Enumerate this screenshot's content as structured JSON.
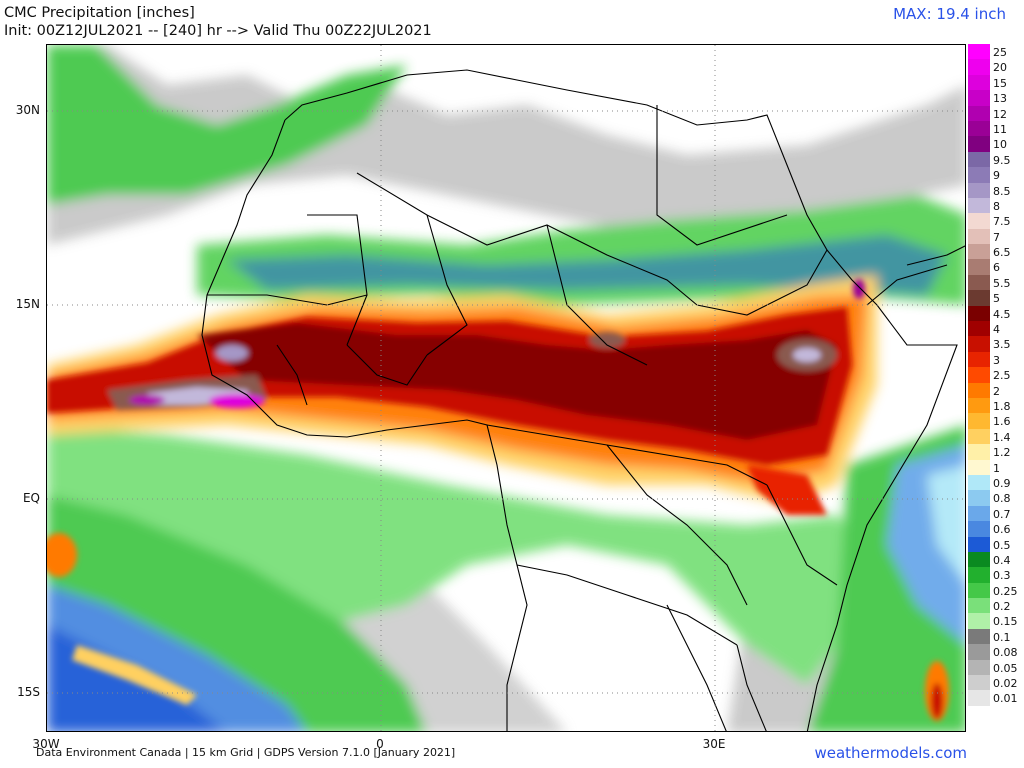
{
  "header": {
    "title": "CMC Precipitation [inches]",
    "subtitle": "Init: 00Z12JUL2021 -- [240] hr --> Valid Thu 00Z22JUL2021",
    "max_label": "MAX: 19.4 inch"
  },
  "axes": {
    "lat_labels": [
      "30N",
      "15N",
      "EQ",
      "15S"
    ],
    "lon_labels": [
      "30W",
      "0",
      "30E"
    ]
  },
  "footer": {
    "credit": "Data Environment Canada | 15 km Grid | GDPS Version 7.1.0 [January 2021]",
    "site": "weathermodels.com"
  },
  "legend": [
    {
      "label": "25",
      "color": "#ff00ff"
    },
    {
      "label": "20",
      "color": "#ee00ee"
    },
    {
      "label": "15",
      "color": "#dd00dd"
    },
    {
      "label": "13",
      "color": "#c800c8"
    },
    {
      "label": "12",
      "color": "#b000b0"
    },
    {
      "label": "11",
      "color": "#9a0096"
    },
    {
      "label": "10",
      "color": "#800080"
    },
    {
      "label": "9.5",
      "color": "#7b68a6"
    },
    {
      "label": "9",
      "color": "#8c7bb6"
    },
    {
      "label": "8.5",
      "color": "#a597c6"
    },
    {
      "label": "8",
      "color": "#c2b8da"
    },
    {
      "label": "7.5",
      "color": "#f3d9d2"
    },
    {
      "label": "7",
      "color": "#e3c0b8"
    },
    {
      "label": "6.5",
      "color": "#c9a097"
    },
    {
      "label": "6",
      "color": "#a97c72"
    },
    {
      "label": "5.5",
      "color": "#8a5a50"
    },
    {
      "label": "5",
      "color": "#6b3a30"
    },
    {
      "label": "4.5",
      "color": "#7a0000"
    },
    {
      "label": "4",
      "color": "#a00000"
    },
    {
      "label": "3.5",
      "color": "#c81000"
    },
    {
      "label": "3",
      "color": "#e82400"
    },
    {
      "label": "2.5",
      "color": "#ff4a00"
    },
    {
      "label": "2",
      "color": "#ff7a00"
    },
    {
      "label": "1.8",
      "color": "#ff9a10"
    },
    {
      "label": "1.6",
      "color": "#ffb830"
    },
    {
      "label": "1.4",
      "color": "#ffd060"
    },
    {
      "label": "1.2",
      "color": "#fff0a8"
    },
    {
      "label": "1",
      "color": "#fff8d0"
    },
    {
      "label": "0.9",
      "color": "#b0e8f8"
    },
    {
      "label": "0.8",
      "color": "#8ccaf0"
    },
    {
      "label": "0.7",
      "color": "#6aa8ea"
    },
    {
      "label": "0.6",
      "color": "#4a88e0"
    },
    {
      "label": "0.5",
      "color": "#1c5ad6"
    },
    {
      "label": "0.4",
      "color": "#0a8a20"
    },
    {
      "label": "0.3",
      "color": "#22b02e"
    },
    {
      "label": "0.25",
      "color": "#44c848"
    },
    {
      "label": "0.2",
      "color": "#7ae07a"
    },
    {
      "label": "0.15",
      "color": "#b0f0a8"
    },
    {
      "label": "0.1",
      "color": "#7a7a7a"
    },
    {
      "label": "0.08",
      "color": "#9a9a9a"
    },
    {
      "label": "0.05",
      "color": "#b4b4b4"
    },
    {
      "label": "0.02",
      "color": "#cecece"
    },
    {
      "label": "0.01",
      "color": "#e6e6e6"
    }
  ]
}
